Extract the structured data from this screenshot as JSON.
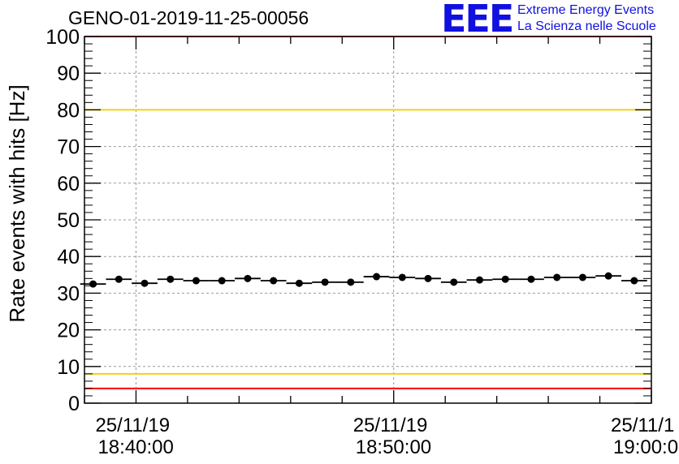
{
  "header": {
    "title": "GENO-01-2019-11-25-00056",
    "logo_mark": "EEE",
    "logo_line1": "Extreme Energy Events",
    "logo_line2": "La Scienza nelle Scuole"
  },
  "chart_data": {
    "type": "scatter",
    "title": "GENO-01-2019-11-25-00056",
    "ylabel": "Rate events with hits [Hz]",
    "xlabel": "",
    "ylim": [
      0,
      100
    ],
    "yticks": [
      0,
      10,
      20,
      30,
      40,
      50,
      60,
      70,
      80,
      90,
      100
    ],
    "xlim": [
      "2019-11-25 18:38:00",
      "2019-11-25 19:00:00"
    ],
    "xticks": [
      {
        "date": "25/11/19",
        "time": "18:40:00",
        "t": "2019-11-25 18:40:00"
      },
      {
        "date": "25/11/19",
        "time": "18:50:00",
        "t": "2019-11-25 18:50:00"
      },
      {
        "date": "25/11/1",
        "time": "19:00:0",
        "t": "2019-11-25 19:00:00"
      }
    ],
    "grid": true,
    "reference_lines": [
      {
        "y": 100,
        "color": "#ff0000"
      },
      {
        "y": 80,
        "color": "#f0d020"
      },
      {
        "y": 8,
        "color": "#f0d020"
      },
      {
        "y": 4,
        "color": "#ff0000"
      }
    ],
    "series": [
      {
        "marker_color": "#000000",
        "points": [
          {
            "t": "2019-11-25 18:38:20",
            "y": 32.5
          },
          {
            "t": "2019-11-25 18:39:20",
            "y": 33.8
          },
          {
            "t": "2019-11-25 18:40:20",
            "y": 32.7
          },
          {
            "t": "2019-11-25 18:41:20",
            "y": 33.8
          },
          {
            "t": "2019-11-25 18:42:20",
            "y": 33.4
          },
          {
            "t": "2019-11-25 18:43:20",
            "y": 33.4
          },
          {
            "t": "2019-11-25 18:44:20",
            "y": 34.0
          },
          {
            "t": "2019-11-25 18:45:20",
            "y": 33.4
          },
          {
            "t": "2019-11-25 18:46:20",
            "y": 32.7
          },
          {
            "t": "2019-11-25 18:47:20",
            "y": 33.0
          },
          {
            "t": "2019-11-25 18:48:20",
            "y": 33.0
          },
          {
            "t": "2019-11-25 18:49:20",
            "y": 34.5
          },
          {
            "t": "2019-11-25 18:50:20",
            "y": 34.3
          },
          {
            "t": "2019-11-25 18:51:20",
            "y": 34.0
          },
          {
            "t": "2019-11-25 18:52:20",
            "y": 33.0
          },
          {
            "t": "2019-11-25 18:53:20",
            "y": 33.6
          },
          {
            "t": "2019-11-25 18:54:20",
            "y": 33.8
          },
          {
            "t": "2019-11-25 18:55:20",
            "y": 33.8
          },
          {
            "t": "2019-11-25 18:56:20",
            "y": 34.3
          },
          {
            "t": "2019-11-25 18:57:20",
            "y": 34.3
          },
          {
            "t": "2019-11-25 18:58:20",
            "y": 34.7
          },
          {
            "t": "2019-11-25 18:59:20",
            "y": 33.4
          }
        ]
      }
    ]
  }
}
